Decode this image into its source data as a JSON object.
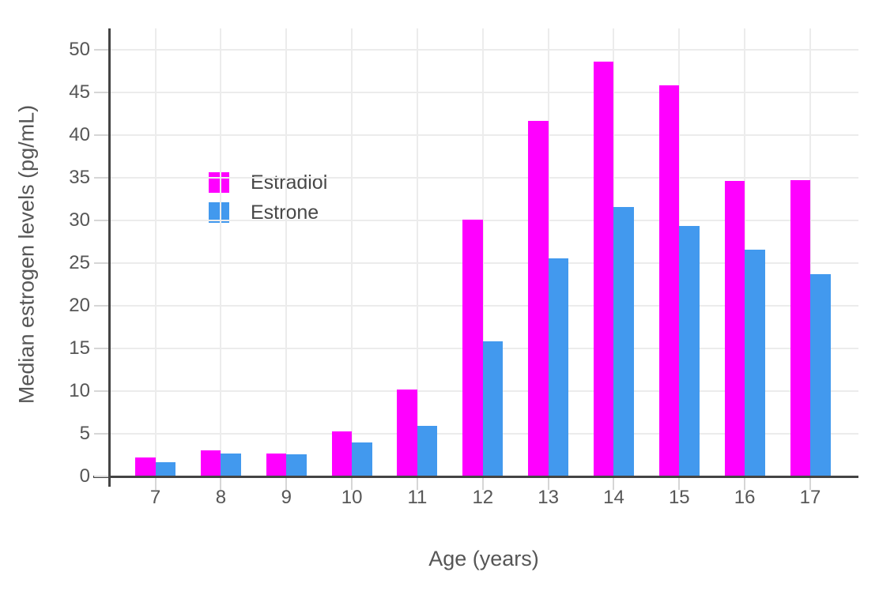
{
  "chart_data": {
    "type": "bar",
    "title": "",
    "xlabel": "Age (years)",
    "ylabel": "Median estrogen levels (pg/mL)",
    "categories": [
      "7",
      "8",
      "9",
      "10",
      "11",
      "12",
      "13",
      "14",
      "15",
      "16",
      "17"
    ],
    "series": [
      {
        "name": "Estradiol",
        "color": "#FF00FF",
        "values": [
          2.2,
          3.1,
          2.7,
          5.3,
          10.2,
          30.1,
          41.6,
          48.6,
          45.8,
          34.6,
          34.7
        ]
      },
      {
        "name": "Estrone",
        "color": "#4299EE",
        "values": [
          1.7,
          2.7,
          2.6,
          4.0,
          5.9,
          15.8,
          25.5,
          31.6,
          29.3,
          26.6,
          23.7
        ]
      }
    ],
    "ylim": [
      0,
      52.5
    ],
    "yticks": [
      0,
      5,
      10,
      15,
      20,
      25,
      30,
      35,
      40,
      45,
      50
    ],
    "grid": true,
    "legend_position": "inside-upper-left",
    "colors": {
      "background": "#FFFFFF",
      "axis_line": "#444444",
      "gridline": "#ECECEC",
      "tick_mark": "#D6D6D6",
      "text": "#565656"
    }
  }
}
